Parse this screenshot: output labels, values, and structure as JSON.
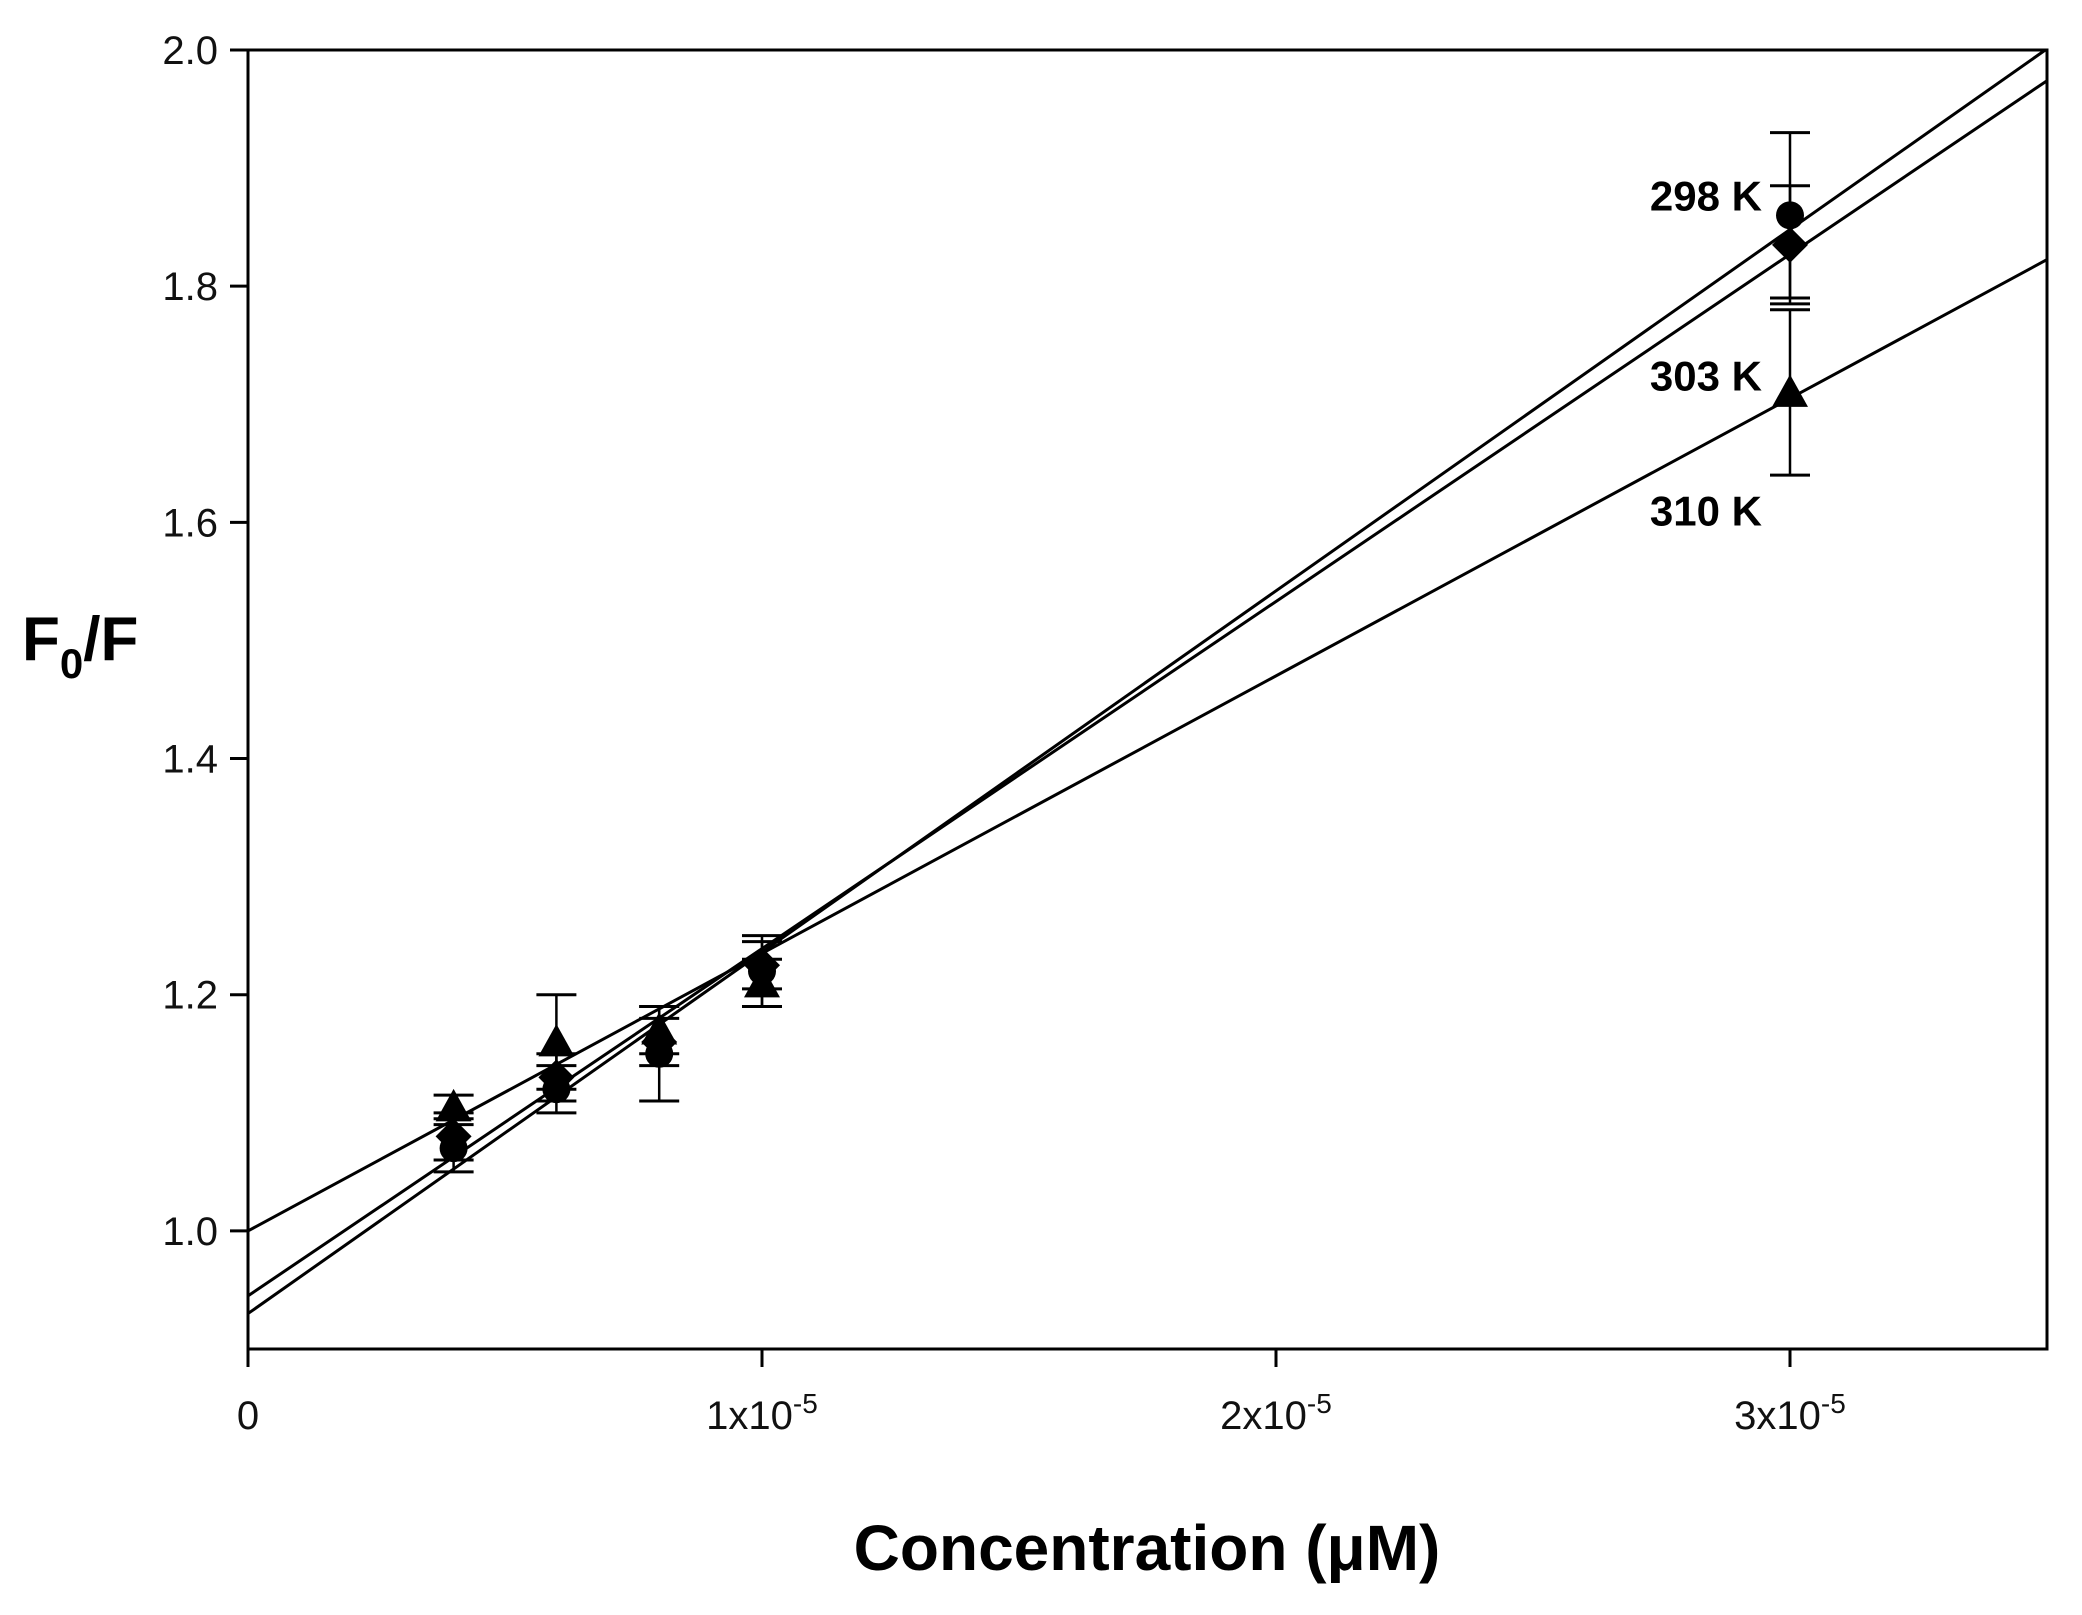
{
  "chart_data": {
    "type": "scatter",
    "title": "",
    "xlabel": "Concentration (μM)",
    "ylabel": {
      "main": "F",
      "sub": "0",
      "rest": "/F"
    },
    "xlim": [
      0,
      3.5e-05
    ],
    "ylim": [
      0.9,
      2.0
    ],
    "grid": false,
    "legend": "none",
    "x_ticks": [
      {
        "value": 0,
        "base": "0",
        "exp": ""
      },
      {
        "value": 1e-05,
        "base": "1x10",
        "exp": "-5"
      },
      {
        "value": 2e-05,
        "base": "2x10",
        "exp": "-5"
      },
      {
        "value": 3e-05,
        "base": "3x10",
        "exp": "-5"
      }
    ],
    "y_ticks": [
      {
        "value": 1.0,
        "label": "1.0"
      },
      {
        "value": 1.2,
        "label": "1.2"
      },
      {
        "value": 1.4,
        "label": "1.4"
      },
      {
        "value": 1.6,
        "label": "1.6"
      },
      {
        "value": 1.8,
        "label": "1.8"
      },
      {
        "value": 2.0,
        "label": "2.0"
      }
    ],
    "series": [
      {
        "name": "298 K",
        "marker": "circle",
        "fit": {
          "intercept": 0.93,
          "slope": 30600
        },
        "points": [
          {
            "x": 4e-06,
            "y": 1.07,
            "err": 0.02
          },
          {
            "x": 6e-06,
            "y": 1.12,
            "err": 0.02
          },
          {
            "x": 8e-06,
            "y": 1.15,
            "err": 0.04
          },
          {
            "x": 1e-05,
            "y": 1.22,
            "err": 0.03
          },
          {
            "x": 3e-05,
            "y": 1.86,
            "err": 0.07
          }
        ]
      },
      {
        "name": "303 K",
        "marker": "diamond",
        "fit": {
          "intercept": 0.945,
          "slope": 29400
        },
        "points": [
          {
            "x": 4e-06,
            "y": 1.08,
            "err": 0.02
          },
          {
            "x": 6e-06,
            "y": 1.13,
            "err": 0.02
          },
          {
            "x": 8e-06,
            "y": 1.16,
            "err": 0.02
          },
          {
            "x": 1e-05,
            "y": 1.225,
            "err": 0.02
          },
          {
            "x": 3e-05,
            "y": 1.835,
            "err": 0.05
          }
        ]
      },
      {
        "name": "310 K",
        "marker": "triangle",
        "fit": {
          "intercept": 1.0,
          "slope": 23500
        },
        "points": [
          {
            "x": 4e-06,
            "y": 1.105,
            "err": 0.01
          },
          {
            "x": 6e-06,
            "y": 1.16,
            "err": 0.04
          },
          {
            "x": 8e-06,
            "y": 1.17,
            "err": 0.02
          },
          {
            "x": 1e-05,
            "y": 1.21,
            "err": 0.02
          },
          {
            "x": 3e-05,
            "y": 1.71,
            "err": 0.07
          }
        ]
      }
    ]
  }
}
